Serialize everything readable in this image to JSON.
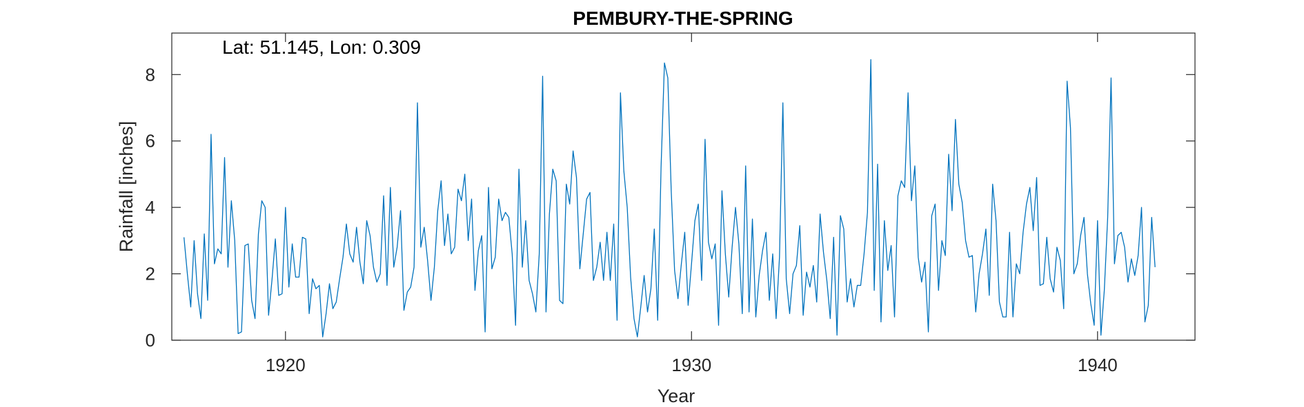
{
  "chart_data": {
    "type": "line",
    "title": "PEMBURY-THE-SPRING",
    "annotation": "Lat: 51.145, Lon: 0.309",
    "xlabel": "Year",
    "ylabel": "Rainfall [inches]",
    "xlim": [
      1917.2,
      1942.4
    ],
    "ylim": [
      0,
      9.25
    ],
    "xticks": [
      1920,
      1930,
      1940
    ],
    "xtick_labels": [
      "1920",
      "1930",
      "1940"
    ],
    "yticks": [
      0,
      2,
      4,
      6,
      8
    ],
    "ytick_labels": [
      "0",
      "2",
      "4",
      "6",
      "8"
    ],
    "grid": false,
    "line_color": "#0072BD",
    "x_start": 1917.5,
    "x_step": 0.0833333,
    "series": [
      {
        "values": [
          3.1,
          2.0,
          1.0,
          3.0,
          1.4,
          0.65,
          3.2,
          1.2,
          6.2,
          2.3,
          2.75,
          2.6,
          5.5,
          2.2,
          4.2,
          3.0,
          0.2,
          0.25,
          2.85,
          2.9,
          1.2,
          0.65,
          3.2,
          4.2,
          4.0,
          0.75,
          1.8,
          3.05,
          1.35,
          1.4,
          4.0,
          1.6,
          2.9,
          1.9,
          1.9,
          3.1,
          3.05,
          0.8,
          1.85,
          1.55,
          1.65,
          0.1,
          0.8,
          1.7,
          0.95,
          1.15,
          1.85,
          2.5,
          3.5,
          2.6,
          2.35,
          3.4,
          2.35,
          1.7,
          3.6,
          3.15,
          2.2,
          1.75,
          2.0,
          4.35,
          1.65,
          4.6,
          2.2,
          2.8,
          3.9,
          0.9,
          1.45,
          1.6,
          2.2,
          7.15,
          2.8,
          3.4,
          2.4,
          1.2,
          2.2,
          3.9,
          4.8,
          2.85,
          3.8,
          2.6,
          2.8,
          4.55,
          4.2,
          5.0,
          3.0,
          4.25,
          1.5,
          2.7,
          3.15,
          0.25,
          4.6,
          2.15,
          2.5,
          4.25,
          3.6,
          3.85,
          3.7,
          2.6,
          0.45,
          5.15,
          2.2,
          3.6,
          1.8,
          1.4,
          0.85,
          2.6,
          7.95,
          0.85,
          3.8,
          5.15,
          4.8,
          1.2,
          1.1,
          4.7,
          4.1,
          5.7,
          4.9,
          2.15,
          3.2,
          4.25,
          4.45,
          1.8,
          2.2,
          2.95,
          1.8,
          3.25,
          1.8,
          3.5,
          0.6,
          7.45,
          5.1,
          4.0,
          1.9,
          0.65,
          0.1,
          1.0,
          1.95,
          0.85,
          1.55,
          3.35,
          0.6,
          5.2,
          8.35,
          7.9,
          4.5,
          2.1,
          1.25,
          2.3,
          3.25,
          1.05,
          2.3,
          3.6,
          4.1,
          1.8,
          6.05,
          2.95,
          2.45,
          2.9,
          0.45,
          4.5,
          2.6,
          1.3,
          2.8,
          4.0,
          2.9,
          0.8,
          5.25,
          0.85,
          3.65,
          0.7,
          1.95,
          2.7,
          3.25,
          1.2,
          2.6,
          0.65,
          2.5,
          7.15,
          1.85,
          0.8,
          2.0,
          2.25,
          3.45,
          0.75,
          2.05,
          1.6,
          2.25,
          1.15,
          3.8,
          2.65,
          1.8,
          0.65,
          3.1,
          0.15,
          3.75,
          3.35,
          1.15,
          1.85,
          1.0,
          1.65,
          1.65,
          2.6,
          3.85,
          8.45,
          1.5,
          5.3,
          0.55,
          3.6,
          2.1,
          2.85,
          0.7,
          4.35,
          4.8,
          4.6,
          7.45,
          4.2,
          5.25,
          2.5,
          1.75,
          2.35,
          0.25,
          3.75,
          4.1,
          1.5,
          3.0,
          2.55,
          5.6,
          3.9,
          6.65,
          4.7,
          4.15,
          3.0,
          2.5,
          2.55,
          0.85,
          2.0,
          2.6,
          3.35,
          1.35,
          4.7,
          3.6,
          1.15,
          0.7,
          0.7,
          3.25,
          0.7,
          2.3,
          2.0,
          3.25,
          4.1,
          4.6,
          3.3,
          4.9,
          1.65,
          1.7,
          3.1,
          1.85,
          1.45,
          2.8,
          2.4,
          0.95,
          7.8,
          6.4,
          2.0,
          2.3,
          3.15,
          3.7,
          2.0,
          1.1,
          0.45,
          3.6,
          0.15,
          1.5,
          3.7,
          7.9,
          2.3,
          3.15,
          3.25,
          2.8,
          1.75,
          2.45,
          1.95,
          2.55,
          4.0,
          0.55,
          1.05,
          3.7,
          2.2
        ]
      }
    ]
  }
}
